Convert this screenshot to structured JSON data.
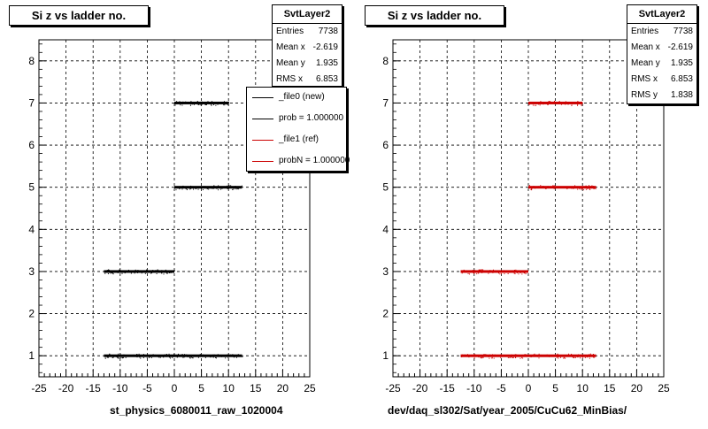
{
  "chart_data": [
    {
      "type": "scatter",
      "title": "Si z vs ladder no.",
      "xlabel": "st_physics_6080011_raw_1020004",
      "ylabel": "",
      "xlim": [
        -25,
        25
      ],
      "ylim": [
        0.5,
        8.5
      ],
      "xticks": [
        -25,
        -20,
        -15,
        -10,
        -5,
        0,
        5,
        10,
        15,
        20,
        25
      ],
      "yticks": [
        1,
        2,
        3,
        4,
        5,
        6,
        7,
        8
      ],
      "grid": true,
      "series": [
        {
          "name": "_file0 (new)",
          "color": "#000000",
          "bands": [
            {
              "y": 1,
              "x_min": -13.0,
              "x_max": 12.5
            },
            {
              "y": 3,
              "x_min": -13.0,
              "x_max": 0.0
            },
            {
              "y": 5,
              "x_min": 0.0,
              "x_max": 12.5
            },
            {
              "y": 7,
              "x_min": 0.0,
              "x_max": 10.0
            }
          ]
        }
      ],
      "stats": {
        "name": "SvtLayer2",
        "rows": [
          {
            "label": "Entries",
            "value": "7738"
          },
          {
            "label": "Mean x",
            "value": "-2.619"
          },
          {
            "label": "Mean y",
            "value": "1.935"
          },
          {
            "label": "RMS x",
            "value": "6.853"
          }
        ]
      },
      "legend": {
        "position": "top-right",
        "entries": [
          {
            "label": "_file0 (new)",
            "color": "#000000"
          },
          {
            "label": "prob = 1.000000",
            "color": "#000000"
          },
          {
            "label": "_file1 (ref)",
            "color": "#cc0000"
          },
          {
            "label": "probN = 1.000000",
            "color": "#cc0000"
          }
        ]
      }
    },
    {
      "type": "scatter",
      "title": "Si z vs ladder no.",
      "xlabel": "dev/daq_sl302/Sat/year_2005/CuCu62_MinBias/",
      "ylabel": "",
      "xlim": [
        -25,
        25
      ],
      "ylim": [
        0.5,
        8.5
      ],
      "xticks": [
        -25,
        -20,
        -15,
        -10,
        -5,
        0,
        5,
        10,
        15,
        20,
        25
      ],
      "yticks": [
        1,
        2,
        3,
        4,
        5,
        6,
        7,
        8
      ],
      "grid": true,
      "series": [
        {
          "name": "_file1 (ref)",
          "color": "#cc0000",
          "bands": [
            {
              "y": 1,
              "x_min": -12.5,
              "x_max": 12.5
            },
            {
              "y": 3,
              "x_min": -12.5,
              "x_max": 0.0
            },
            {
              "y": 5,
              "x_min": 0.0,
              "x_max": 12.5
            },
            {
              "y": 7,
              "x_min": 0.0,
              "x_max": 10.0
            }
          ]
        }
      ],
      "stats": {
        "name": "SvtLayer2",
        "rows": [
          {
            "label": "Entries",
            "value": "7738"
          },
          {
            "label": "Mean x",
            "value": "-2.619"
          },
          {
            "label": "Mean y",
            "value": "1.935"
          },
          {
            "label": "RMS x",
            "value": "6.853"
          },
          {
            "label": "RMS y",
            "value": "1.838"
          }
        ]
      }
    }
  ]
}
